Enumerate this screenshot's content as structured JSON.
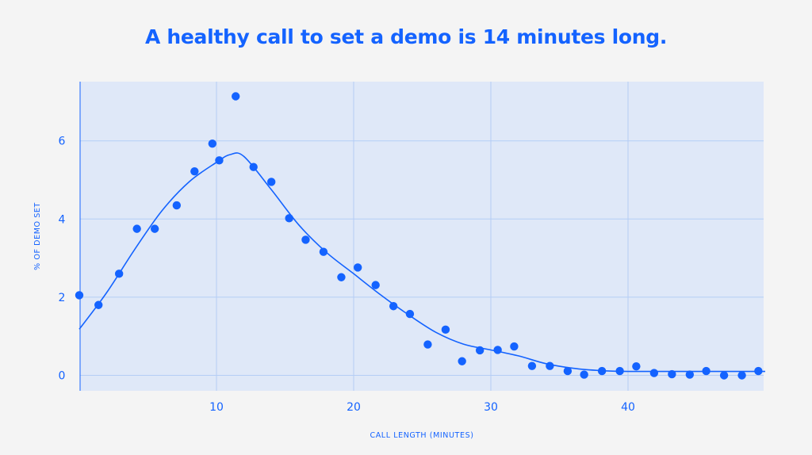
{
  "page": {
    "title": "A healthy call to set a demo is 14 minutes long."
  },
  "colors": {
    "accent": "#1463ff",
    "plot_background": "#dfe8f8",
    "grid": "#b4cdf5",
    "page_background": "#f4f4f4"
  },
  "chart_data": {
    "type": "scatter",
    "title": "A healthy call to set a demo is 14 minutes long.",
    "xlabel": "CALL LENGTH (MINUTES)",
    "ylabel": "% OF DEMO SET",
    "xlim": [
      0,
      50
    ],
    "ylim": [
      -0.4,
      7.4
    ],
    "x_ticks": [
      10,
      20,
      30,
      40
    ],
    "y_ticks": [
      0,
      2,
      4,
      6
    ],
    "grid": true,
    "legend": false,
    "series": [
      {
        "type": "scatter",
        "x": [
          0.0,
          1.4,
          2.9,
          4.2,
          5.5,
          7.1,
          8.4,
          9.7,
          10.2,
          11.4,
          12.7,
          14.0,
          15.3,
          16.5,
          17.8,
          19.1,
          20.3,
          21.6,
          22.9,
          24.1,
          25.4,
          26.7,
          27.9,
          29.2,
          30.5,
          31.7,
          33.0,
          34.3,
          35.6,
          36.8,
          38.1,
          39.4,
          40.6,
          41.9,
          43.2,
          44.5,
          45.7,
          47.0,
          48.3,
          49.5
        ],
        "y": [
          2.05,
          1.8,
          2.6,
          3.75,
          3.75,
          4.35,
          5.22,
          5.93,
          5.5,
          7.14,
          5.33,
          4.95,
          4.02,
          3.47,
          3.16,
          2.51,
          2.76,
          2.31,
          1.77,
          1.57,
          0.79,
          1.17,
          0.36,
          0.64,
          0.65,
          0.74,
          0.24,
          0.24,
          0.11,
          0.02,
          0.11,
          0.11,
          0.23,
          0.06,
          0.03,
          0.02,
          0.11,
          0.0,
          0.0,
          0.11
        ]
      },
      {
        "type": "line",
        "x": [
          0.0,
          2.0,
          4.0,
          6.0,
          8.0,
          10.0,
          11.0,
          12.0,
          14.0,
          16.0,
          18.0,
          20.0,
          22.0,
          24.0,
          26.0,
          28.0,
          30.0,
          32.0,
          34.0,
          36.0,
          38.0,
          40.0,
          44.0,
          50.0
        ],
        "y": [
          1.18,
          2.12,
          3.2,
          4.2,
          4.95,
          5.45,
          5.65,
          5.6,
          4.75,
          3.85,
          3.15,
          2.6,
          2.05,
          1.55,
          1.1,
          0.8,
          0.65,
          0.5,
          0.3,
          0.18,
          0.12,
          0.1,
          0.1,
          0.1
        ]
      }
    ]
  }
}
